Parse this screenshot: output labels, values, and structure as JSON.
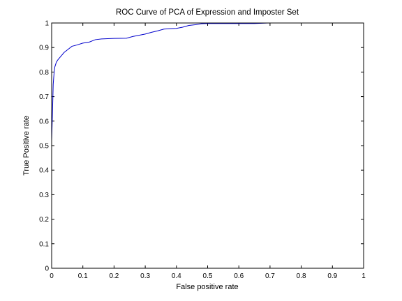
{
  "chart_data": {
    "type": "line",
    "title": "ROC Curve of PCA of Expression and Imposter Set",
    "xlabel": "False positive rate",
    "ylabel": "True Positive rate",
    "xlim": [
      0,
      1
    ],
    "ylim": [
      0,
      1
    ],
    "grid": false,
    "legend": "none",
    "x_ticks": [
      "0",
      "0.1",
      "0.2",
      "0.3",
      "0.4",
      "0.5",
      "0.6",
      "0.7",
      "0.8",
      "0.9",
      "1"
    ],
    "y_ticks": [
      "0",
      "0.1",
      "0.2",
      "0.3",
      "0.4",
      "0.5",
      "0.6",
      "0.7",
      "0.8",
      "0.9",
      "1"
    ],
    "line_color": "#0000cc",
    "series": [
      {
        "x": [
          0,
          0,
          0.003,
          0.005,
          0.008,
          0.01,
          0.015,
          0.02,
          0.03,
          0.04,
          0.05,
          0.065,
          0.08,
          0.1,
          0.12,
          0.14,
          0.16,
          0.2,
          0.24,
          0.26,
          0.28,
          0.3,
          0.32,
          0.34,
          0.36,
          0.38,
          0.4,
          0.42,
          0.44,
          0.46,
          0.48,
          0.5,
          0.6,
          0.65,
          0.7,
          0.8,
          0.9,
          1.0
        ],
        "y": [
          0,
          0.52,
          0.65,
          0.75,
          0.8,
          0.82,
          0.84,
          0.85,
          0.865,
          0.88,
          0.89,
          0.905,
          0.91,
          0.918,
          0.922,
          0.932,
          0.935,
          0.937,
          0.938,
          0.945,
          0.95,
          0.955,
          0.962,
          0.968,
          0.975,
          0.977,
          0.978,
          0.983,
          0.99,
          0.993,
          0.997,
          0.998,
          0.998,
          0.998,
          1.0,
          1.0,
          1.0,
          1.0
        ]
      }
    ]
  }
}
